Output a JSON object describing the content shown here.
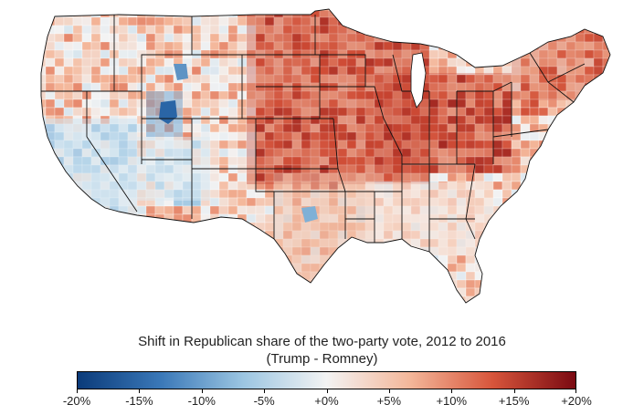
{
  "map": {
    "subject": "contiguous United States counties",
    "palette": [
      "#0b3b7a",
      "#3a78b8",
      "#9cc6e2",
      "#f3f3f3",
      "#f4b79a",
      "#d7553b",
      "#7a0a12"
    ]
  },
  "legend": {
    "title": "Shift in Republican share of the two-party vote, 2012 to 2016",
    "subtitle": "(Trump - Romney)",
    "ticks": [
      {
        "value": -20,
        "label": "-20%"
      },
      {
        "value": -15,
        "label": "-15%"
      },
      {
        "value": -10,
        "label": "-10%"
      },
      {
        "value": -5,
        "label": "-5%"
      },
      {
        "value": 0,
        "label": "+0%"
      },
      {
        "value": 5,
        "label": "+5%"
      },
      {
        "value": 10,
        "label": "+10%"
      },
      {
        "value": 15,
        "label": "+15%"
      },
      {
        "value": 20,
        "label": "+20%"
      }
    ],
    "range": [
      -20,
      20
    ]
  }
}
